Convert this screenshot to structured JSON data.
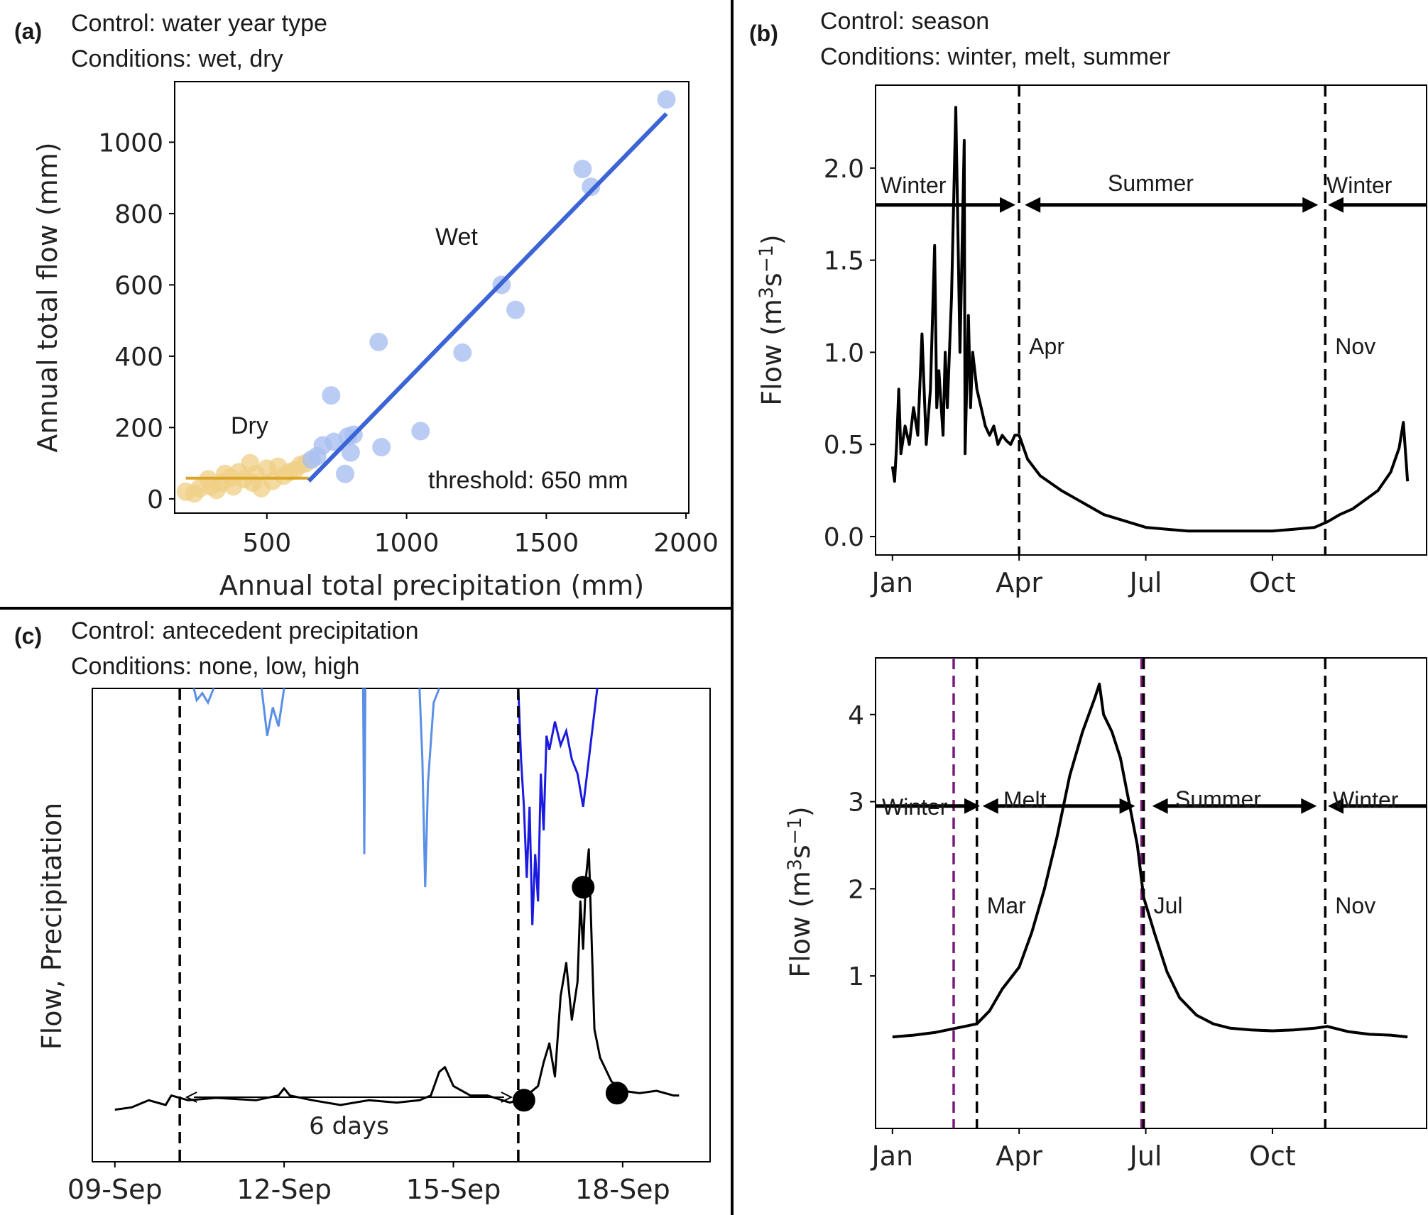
{
  "panels": {
    "a": {
      "letter": "(a)",
      "control": "Control: water year type",
      "conditions": "Conditions: wet, dry"
    },
    "b": {
      "letter": "(b)",
      "control": "Control: season",
      "conditions": "Conditions: winter, melt, summer"
    },
    "c": {
      "letter": "(c)",
      "control": "Control: antecedent precipitation",
      "conditions": "Conditions: none, low, high"
    }
  },
  "colors": {
    "wet": "#3b64d6",
    "wet_points": "#a9bff0",
    "dry": "#d9a528",
    "dry_points": "#f0cf86",
    "flow": "#000000",
    "precip_light": "#5a8fe6",
    "precip_dark": "#1a1ae0",
    "purple_line": "#7a1a7a"
  },
  "chart_data": [
    {
      "id": "a",
      "type": "scatter",
      "title": "Control: water year type",
      "xlabel": "Annual total precipitation (mm)",
      "ylabel": "Annual total flow (mm)",
      "xlim": [
        170,
        2010
      ],
      "ylim": [
        -40,
        1170
      ],
      "xticks": [
        500,
        1000,
        1500,
        2000
      ],
      "xtick_labels": [
        "500",
        "1000",
        "1500",
        "2000"
      ],
      "yticks": [
        0,
        200,
        400,
        600,
        800,
        1000
      ],
      "ytick_labels": [
        "0",
        "200",
        "400",
        "600",
        "800",
        "1000"
      ],
      "annotations": {
        "dry": "Dry",
        "wet": "Wet",
        "threshold": "threshold: 650 mm"
      },
      "series": [
        {
          "name": "Dry",
          "points": [
            [
              210,
              20
            ],
            [
              240,
              15
            ],
            [
              260,
              30
            ],
            [
              290,
              55
            ],
            [
              300,
              35
            ],
            [
              320,
              25
            ],
            [
              340,
              45
            ],
            [
              350,
              70
            ],
            [
              370,
              60
            ],
            [
              380,
              35
            ],
            [
              400,
              75
            ],
            [
              420,
              55
            ],
            [
              440,
              100
            ],
            [
              450,
              45
            ],
            [
              460,
              70
            ],
            [
              480,
              30
            ],
            [
              500,
              85
            ],
            [
              520,
              50
            ],
            [
              540,
              90
            ],
            [
              560,
              65
            ],
            [
              580,
              75
            ],
            [
              600,
              80
            ],
            [
              620,
              95
            ],
            [
              640,
              100
            ]
          ],
          "fit": [
            [
              210,
              58
            ],
            [
              650,
              58
            ]
          ]
        },
        {
          "name": "Wet",
          "points": [
            [
              660,
              110
            ],
            [
              680,
              120
            ],
            [
              700,
              150
            ],
            [
              730,
              290
            ],
            [
              740,
              160
            ],
            [
              780,
              70
            ],
            [
              790,
              175
            ],
            [
              800,
              130
            ],
            [
              810,
              180
            ],
            [
              900,
              440
            ],
            [
              910,
              145
            ],
            [
              1050,
              190
            ],
            [
              1200,
              410
            ],
            [
              1340,
              600
            ],
            [
              1390,
              530
            ],
            [
              1630,
              925
            ],
            [
              1660,
              875
            ],
            [
              1930,
              1120
            ]
          ],
          "fit": [
            [
              650,
              50
            ],
            [
              1930,
              1080
            ]
          ]
        }
      ]
    },
    {
      "id": "b_top",
      "type": "line",
      "title": "Control: season",
      "ylabel": "Flow (m3s-1)",
      "ylim": [
        -0.1,
        2.45
      ],
      "xlim": [
        -0.4,
        12.65
      ],
      "yticks": [
        0.0,
        0.5,
        1.0,
        1.5,
        2.0
      ],
      "ytick_labels": [
        "0.0",
        "0.5",
        "1.0",
        "1.5",
        "2.0"
      ],
      "xticks": [
        0,
        3,
        6,
        9
      ],
      "xtick_labels": [
        "Jan",
        "Apr",
        "Jul",
        "Oct"
      ],
      "vlines": [
        3.0,
        10.25
      ],
      "vline_labels": [
        "Apr",
        "Nov"
      ],
      "arrow_y": 1.8,
      "season_labels": [
        "Winter",
        "Summer",
        "Winter"
      ],
      "series": [
        {
          "name": "Flow",
          "x": [
            0.0,
            0.05,
            0.1,
            0.15,
            0.2,
            0.3,
            0.4,
            0.5,
            0.6,
            0.7,
            0.8,
            0.9,
            1.0,
            1.05,
            1.1,
            1.2,
            1.25,
            1.3,
            1.4,
            1.5,
            1.6,
            1.7,
            1.72,
            1.8,
            1.85,
            1.9,
            2.0,
            2.1,
            2.2,
            2.3,
            2.4,
            2.5,
            2.6,
            2.7,
            2.8,
            2.9,
            3.0,
            3.2,
            3.5,
            4.0,
            5.0,
            6.0,
            7.0,
            8.0,
            9.0,
            9.5,
            10.0,
            10.3,
            10.6,
            10.9,
            11.2,
            11.5,
            11.8,
            12.0,
            12.1,
            12.2
          ],
          "y": [
            0.38,
            0.3,
            0.5,
            0.8,
            0.45,
            0.6,
            0.5,
            0.7,
            0.55,
            1.1,
            0.5,
            0.8,
            1.58,
            0.7,
            0.9,
            0.55,
            1.0,
            0.7,
            1.3,
            2.33,
            1.0,
            2.15,
            0.45,
            1.2,
            0.7,
            1.0,
            0.8,
            0.7,
            0.6,
            0.55,
            0.6,
            0.5,
            0.55,
            0.52,
            0.5,
            0.55,
            0.55,
            0.42,
            0.33,
            0.25,
            0.12,
            0.05,
            0.03,
            0.03,
            0.03,
            0.04,
            0.05,
            0.08,
            0.12,
            0.15,
            0.2,
            0.25,
            0.35,
            0.48,
            0.62,
            0.3
          ]
        }
      ]
    },
    {
      "id": "b_bottom",
      "type": "line",
      "ylabel": "Flow (m3s-1)",
      "ylim": [
        -0.75,
        4.65
      ],
      "xlim": [
        -0.4,
        12.65
      ],
      "yticks": [
        1,
        2,
        3,
        4
      ],
      "ytick_labels": [
        "1",
        "2",
        "3",
        "4"
      ],
      "xticks": [
        0,
        3,
        6,
        9
      ],
      "xtick_labels": [
        "Jan",
        "Apr",
        "Jul",
        "Oct"
      ],
      "vlines": [
        2.0,
        5.95,
        10.25
      ],
      "vlines_purple": [
        1.45,
        5.9
      ],
      "vline_labels": [
        "Mar",
        "Jul",
        "Nov"
      ],
      "arrow_y": 2.95,
      "season_labels": [
        "Winter",
        "Melt",
        "Summer",
        "Winter"
      ],
      "series": [
        {
          "name": "Flow",
          "x": [
            0.0,
            0.5,
            1.0,
            1.5,
            2.0,
            2.3,
            2.6,
            3.0,
            3.3,
            3.6,
            3.9,
            4.2,
            4.5,
            4.8,
            4.9,
            5.0,
            5.2,
            5.4,
            5.6,
            5.8,
            5.95,
            6.2,
            6.5,
            6.8,
            7.2,
            7.6,
            8.0,
            8.5,
            9.0,
            9.5,
            10.0,
            10.3,
            10.8,
            11.3,
            11.8,
            12.2
          ],
          "y": [
            0.3,
            0.32,
            0.35,
            0.4,
            0.45,
            0.6,
            0.85,
            1.1,
            1.5,
            2.0,
            2.6,
            3.3,
            3.8,
            4.2,
            4.35,
            4.0,
            3.8,
            3.5,
            3.0,
            2.5,
            1.9,
            1.5,
            1.05,
            0.75,
            0.55,
            0.45,
            0.4,
            0.38,
            0.37,
            0.38,
            0.4,
            0.42,
            0.36,
            0.33,
            0.32,
            0.3
          ]
        }
      ]
    },
    {
      "id": "c",
      "type": "line",
      "title": "Control: antecedent precipitation",
      "ylabel": "Flow, Precipitation",
      "xlim": [
        8.6,
        19.55
      ],
      "ylim": [
        0,
        1
      ],
      "xticks": [
        9,
        12,
        15,
        18
      ],
      "xtick_labels": [
        "09-Sep",
        "12-Sep",
        "15-Sep",
        "18-Sep"
      ],
      "vlines": [
        10.15,
        16.15
      ],
      "span_label": "6 days",
      "series": [
        {
          "name": "Flow",
          "x": [
            9.0,
            9.3,
            9.6,
            9.9,
            10.0,
            10.3,
            10.8,
            11.5,
            11.9,
            12.0,
            12.1,
            12.5,
            13.0,
            13.5,
            14.0,
            14.4,
            14.6,
            14.75,
            14.85,
            15.0,
            15.3,
            15.6,
            16.0,
            16.15,
            16.3,
            16.5,
            16.6,
            16.7,
            16.8,
            16.9,
            17.0,
            17.1,
            17.2,
            17.25,
            17.3,
            17.35,
            17.4,
            17.5,
            17.6,
            17.8,
            18.0,
            18.3,
            18.6,
            18.9,
            19.0
          ],
          "y": [
            0.11,
            0.115,
            0.13,
            0.12,
            0.14,
            0.13,
            0.135,
            0.13,
            0.14,
            0.155,
            0.14,
            0.13,
            0.12,
            0.13,
            0.125,
            0.13,
            0.14,
            0.19,
            0.2,
            0.16,
            0.14,
            0.14,
            0.125,
            0.13,
            0.14,
            0.16,
            0.21,
            0.25,
            0.18,
            0.35,
            0.42,
            0.3,
            0.38,
            0.55,
            0.45,
            0.6,
            0.66,
            0.28,
            0.22,
            0.17,
            0.15,
            0.145,
            0.15,
            0.14,
            0.14
          ]
        }
      ],
      "points": [
        [
          16.25,
          0.13
        ],
        [
          17.3,
          0.58
        ],
        [
          17.9,
          0.145
        ]
      ],
      "precip_light": [
        [
          [
            10.4,
            1.0
          ],
          [
            10.45,
            0.975
          ],
          [
            10.55,
            0.99
          ],
          [
            10.65,
            0.97
          ],
          [
            10.75,
            1.0
          ]
        ],
        [
          [
            11.6,
            1.0
          ],
          [
            11.7,
            0.9
          ],
          [
            11.8,
            0.96
          ],
          [
            11.9,
            0.92
          ],
          [
            12.0,
            1.0
          ]
        ],
        [
          [
            13.4,
            1.0
          ],
          [
            13.42,
            0.65
          ],
          [
            13.44,
            1.0
          ]
        ],
        [
          [
            14.4,
            1.0
          ],
          [
            14.45,
            0.85
          ],
          [
            14.5,
            0.58
          ],
          [
            14.55,
            0.8
          ],
          [
            14.65,
            0.97
          ],
          [
            14.75,
            1.0
          ]
        ]
      ],
      "precip_dark": [
        [
          [
            16.15,
            1.0
          ],
          [
            16.2,
            0.85
          ],
          [
            16.25,
            0.75
          ],
          [
            16.3,
            0.6
          ],
          [
            16.35,
            0.75
          ],
          [
            16.4,
            0.5
          ],
          [
            16.45,
            0.65
          ],
          [
            16.5,
            0.55
          ],
          [
            16.55,
            0.82
          ],
          [
            16.6,
            0.7
          ],
          [
            16.65,
            0.9
          ],
          [
            16.7,
            0.87
          ],
          [
            16.8,
            0.93
          ],
          [
            16.9,
            0.88
          ],
          [
            17.0,
            0.91
          ],
          [
            17.1,
            0.85
          ],
          [
            17.2,
            0.82
          ],
          [
            17.3,
            0.75
          ],
          [
            17.4,
            0.85
          ],
          [
            17.5,
            0.95
          ],
          [
            17.55,
            1.0
          ]
        ]
      ]
    }
  ]
}
